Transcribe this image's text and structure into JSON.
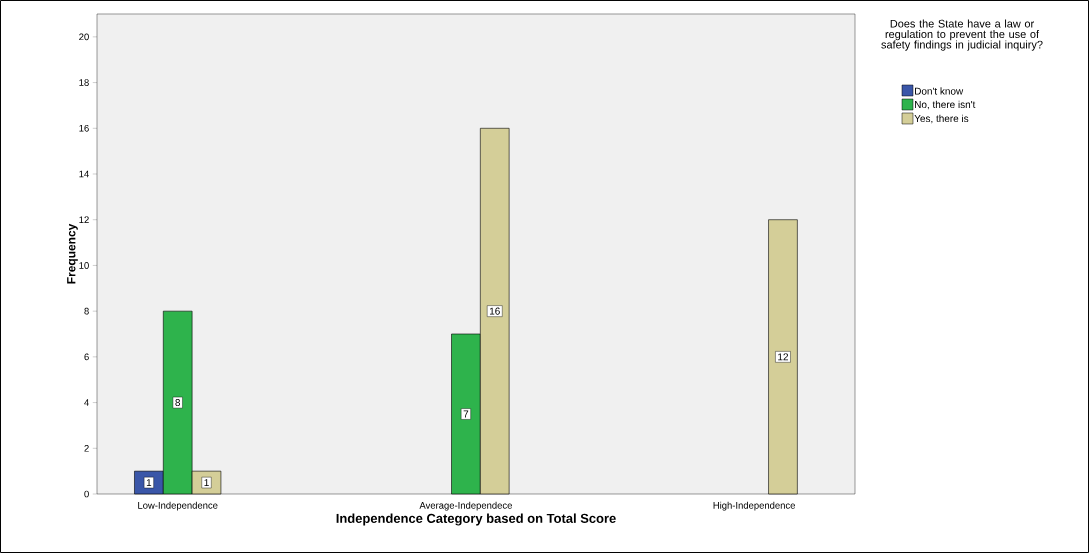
{
  "chart_data": {
    "type": "bar",
    "xlabel": "Independence Category based on Total Score",
    "ylabel": "Frequency",
    "legend_title": "Does the State have a law or regulation to prevent the use of safety findings in judicial inquiry?",
    "categories": [
      "Low-Independence",
      "Average-Independece",
      "High-Independence"
    ],
    "series": [
      {
        "name": "Don't know",
        "color": "#3a56a8",
        "values": [
          1,
          null,
          null
        ]
      },
      {
        "name": "No, there isn't",
        "color": "#2eb34c",
        "values": [
          8,
          7,
          null
        ]
      },
      {
        "name": "Yes, there is",
        "color": "#d4ce98",
        "values": [
          1,
          16,
          12
        ]
      }
    ],
    "ylim": [
      0,
      21
    ],
    "yticks": [
      0,
      2,
      4,
      6,
      8,
      10,
      12,
      14,
      16,
      18,
      20
    ],
    "data_labels": true,
    "legend": "top right",
    "grid": false
  }
}
